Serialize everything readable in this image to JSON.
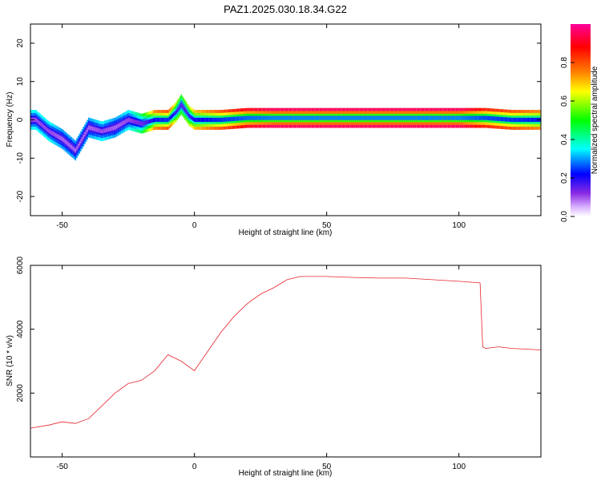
{
  "title": "PAZ1.2025.030.18.34.G22",
  "chart_data": [
    {
      "type": "heatmap",
      "title": "PAZ1.2025.030.18.34.G22",
      "xlabel": "Height of straight line (km)",
      "ylabel": "Frequency (Hz)",
      "xlim": [
        -62,
        131
      ],
      "ylim": [
        -25,
        25
      ],
      "xticks": [
        -50,
        0,
        50,
        100
      ],
      "yticks": [
        -20,
        -10,
        0,
        10,
        20
      ],
      "colorbar": {
        "label": "Normalized spectral amplitude",
        "range": [
          0.0,
          1.0
        ],
        "ticks": [
          0.0,
          0.2,
          0.4,
          0.6,
          0.8
        ],
        "colormap": [
          "#ffffff",
          "#8a2be2",
          "#0000ff",
          "#00ffff",
          "#00ff00",
          "#ffff00",
          "#ff8000",
          "#ff0000",
          "#ff00aa"
        ]
      },
      "ridge": {
        "x": [
          -60,
          -55,
          -50,
          -45,
          -40,
          -35,
          -30,
          -25,
          -20,
          -15,
          -10,
          -7,
          -5,
          -2,
          0,
          5,
          10,
          20,
          30,
          50,
          70,
          90,
          100,
          110,
          120,
          131
        ],
        "freq": [
          0,
          -3,
          -5,
          -8,
          -2,
          -3,
          -2,
          0,
          -1,
          0,
          0,
          2,
          4,
          1,
          0,
          0,
          0,
          0.5,
          0.5,
          0.5,
          0.5,
          0.5,
          0.5,
          0.5,
          0,
          0
        ],
        "amplitude": [
          0.35,
          0.35,
          0.3,
          0.3,
          0.3,
          0.35,
          0.3,
          0.35,
          0.45,
          0.75,
          0.8,
          0.6,
          0.5,
          0.6,
          0.7,
          0.75,
          0.8,
          0.9,
          0.95,
          0.95,
          0.95,
          0.95,
          0.95,
          0.85,
          0.8,
          0.75
        ]
      }
    },
    {
      "type": "line",
      "xlabel": "Height of straight line (km)",
      "ylabel": "SNR (10 * v/v)",
      "xlim": [
        -62,
        131
      ],
      "ylim": [
        0,
        6000
      ],
      "xticks": [
        -50,
        0,
        50,
        100
      ],
      "yticks": [
        2000,
        4000,
        6000
      ],
      "line_color": "#e8232b",
      "series": [
        {
          "x": [
            -62,
            -55,
            -50,
            -45,
            -40,
            -35,
            -30,
            -25,
            -20,
            -15,
            -10,
            -5,
            0,
            5,
            10,
            15,
            20,
            25,
            30,
            35,
            40,
            45,
            50,
            60,
            70,
            80,
            90,
            100,
            108,
            109,
            110,
            115,
            120,
            125,
            131
          ],
          "values": [
            900,
            1000,
            1100,
            1050,
            1200,
            1600,
            2000,
            2300,
            2400,
            2700,
            3200,
            3000,
            2700,
            3300,
            3900,
            4400,
            4800,
            5100,
            5300,
            5550,
            5650,
            5650,
            5650,
            5620,
            5600,
            5600,
            5550,
            5500,
            5450,
            3450,
            3400,
            3450,
            3400,
            3380,
            3350
          ]
        }
      ]
    }
  ]
}
